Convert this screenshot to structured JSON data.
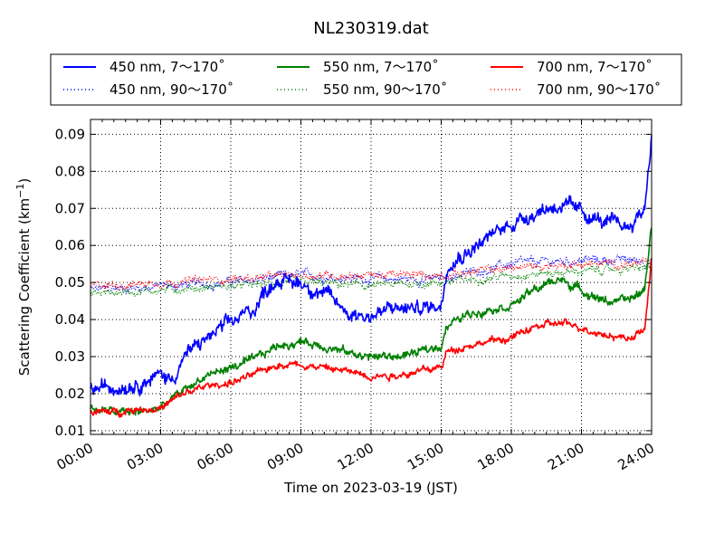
{
  "chart_data": {
    "type": "line",
    "title": "NL230319.dat",
    "xlabel": "Time on 2023-03-19 (JST)",
    "ylabel": "Scattering Coefficient (km",
    "ylabel_sup": "−1",
    "ylabel_end": ")",
    "xlim_hours": [
      0,
      24
    ],
    "ylim": [
      0.009,
      0.094
    ],
    "x_ticks": [
      {
        "h": 0,
        "label": "00:00"
      },
      {
        "h": 3,
        "label": "03:00"
      },
      {
        "h": 6,
        "label": "06:00"
      },
      {
        "h": 9,
        "label": "09:00"
      },
      {
        "h": 12,
        "label": "12:00"
      },
      {
        "h": 15,
        "label": "15:00"
      },
      {
        "h": 18,
        "label": "18:00"
      },
      {
        "h": 21,
        "label": "21:00"
      },
      {
        "h": 24,
        "label": "24:00"
      }
    ],
    "y_ticks": [
      {
        "v": 0.01,
        "label": "0.01"
      },
      {
        "v": 0.02,
        "label": "0.02"
      },
      {
        "v": 0.03,
        "label": "0.03"
      },
      {
        "v": 0.04,
        "label": "0.04"
      },
      {
        "v": 0.05,
        "label": "0.05"
      },
      {
        "v": 0.06,
        "label": "0.06"
      },
      {
        "v": 0.07,
        "label": "0.07"
      },
      {
        "v": 0.08,
        "label": "0.08"
      },
      {
        "v": 0.09,
        "label": "0.09"
      }
    ],
    "grid": true,
    "legend_position": "top",
    "series": [
      {
        "name": "450 nm, 7～170˚",
        "color": "#0000ff",
        "style": "solid",
        "noise": 0.0022,
        "x": [
          0,
          1,
          2,
          3,
          3.5,
          4,
          5,
          6,
          7,
          7.5,
          8,
          8.5,
          9,
          10,
          11,
          12,
          13,
          14,
          15,
          15.3,
          16,
          17,
          18,
          19,
          20,
          21,
          22,
          23,
          23.7,
          24
        ],
        "y": [
          0.021,
          0.022,
          0.023,
          0.025,
          0.024,
          0.03,
          0.035,
          0.039,
          0.043,
          0.048,
          0.051,
          0.05,
          0.05,
          0.047,
          0.042,
          0.041,
          0.043,
          0.043,
          0.044,
          0.056,
          0.058,
          0.062,
          0.066,
          0.069,
          0.071,
          0.069,
          0.066,
          0.065,
          0.07,
          0.09
        ]
      },
      {
        "name": "450 nm, 90～170˚",
        "color": "#0000ff",
        "style": "dotted",
        "noise": 0.0014,
        "x": [
          0,
          3,
          6,
          9,
          12,
          15,
          18,
          21,
          24
        ],
        "y": [
          0.048,
          0.049,
          0.05,
          0.052,
          0.051,
          0.051,
          0.055,
          0.056,
          0.056
        ]
      },
      {
        "name": "550 nm, 7～170˚",
        "color": "#008000",
        "style": "solid",
        "noise": 0.0013,
        "x": [
          0,
          1,
          2,
          3,
          4,
          5,
          6,
          7,
          8,
          9,
          10,
          11,
          12,
          13,
          14,
          15,
          15.2,
          16,
          17,
          18,
          19,
          20,
          21,
          22,
          23,
          23.7,
          24
        ],
        "y": [
          0.016,
          0.015,
          0.015,
          0.016,
          0.021,
          0.025,
          0.027,
          0.029,
          0.033,
          0.034,
          0.033,
          0.031,
          0.03,
          0.03,
          0.031,
          0.033,
          0.038,
          0.041,
          0.043,
          0.044,
          0.048,
          0.051,
          0.048,
          0.045,
          0.045,
          0.048,
          0.066
        ]
      },
      {
        "name": "550 nm, 90～170˚",
        "color": "#008000",
        "style": "dotted",
        "noise": 0.0012,
        "x": [
          0,
          3,
          6,
          9,
          12,
          15,
          18,
          21,
          24
        ],
        "y": [
          0.047,
          0.048,
          0.049,
          0.05,
          0.049,
          0.05,
          0.052,
          0.053,
          0.054
        ]
      },
      {
        "name": "700 nm, 7～170˚",
        "color": "#ff0000",
        "style": "solid",
        "noise": 0.0011,
        "x": [
          0,
          1,
          2,
          3,
          4,
          5,
          6,
          7,
          8,
          9,
          10,
          11,
          12,
          13,
          14,
          15,
          15.2,
          16,
          17,
          18,
          19,
          20,
          21,
          22,
          23,
          23.7,
          24
        ],
        "y": [
          0.015,
          0.015,
          0.016,
          0.016,
          0.02,
          0.022,
          0.023,
          0.025,
          0.028,
          0.028,
          0.027,
          0.026,
          0.025,
          0.025,
          0.026,
          0.027,
          0.031,
          0.033,
          0.034,
          0.035,
          0.038,
          0.039,
          0.038,
          0.036,
          0.035,
          0.037,
          0.056
        ]
      },
      {
        "name": "700 nm, 90～170˚",
        "color": "#ff0000",
        "style": "dotted",
        "noise": 0.0012,
        "x": [
          0,
          3,
          6,
          9,
          12,
          15,
          18,
          21,
          24
        ],
        "y": [
          0.049,
          0.05,
          0.051,
          0.052,
          0.052,
          0.052,
          0.054,
          0.055,
          0.055
        ]
      }
    ]
  }
}
